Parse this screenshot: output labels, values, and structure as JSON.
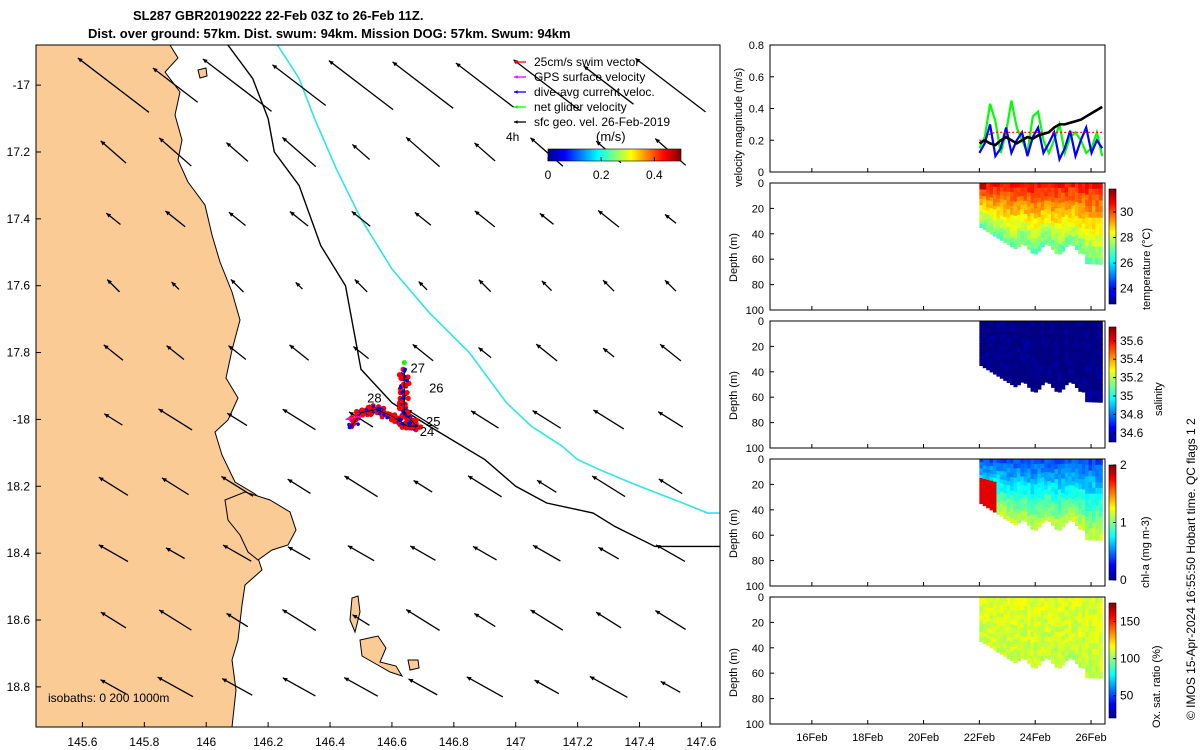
{
  "title": {
    "line1": "SL287 GBR20190222 22-Feb 03Z to 26-Feb 11Z.",
    "line2": "Dist. over ground: 57km. Dist. swum: 94km. Mission DOG: 57km. Swum: 94km"
  },
  "stamp": "© IMOS 15-Apr-2024 16:55:50 Hobart time. QC flags 1  2",
  "colors": {
    "land": "#fbcb96",
    "isobath_200": "#000000",
    "isobath_1000": "#2de6e6",
    "vector_black": "#000000"
  },
  "chart_data": [
    {
      "type": "map",
      "xlim": [
        145.45,
        147.66
      ],
      "ylim": [
        -18.92,
        -16.88
      ],
      "xticks": [
        145.6,
        145.8,
        146,
        146.2,
        146.4,
        146.6,
        146.8,
        147,
        147.2,
        147.4,
        147.6
      ],
      "yticks": [
        -17,
        -17.2,
        -17.4,
        -17.6,
        -17.8,
        -18,
        -18.2,
        -18.4,
        -18.6,
        -18.8
      ],
      "xticklabels": [
        "145.6",
        "145.8",
        "146",
        "146.2",
        "146.4",
        "146.6",
        "146.8",
        "147",
        "147.2",
        "147.4",
        "147.6"
      ],
      "yticklabels": [
        "-17",
        "17.2",
        "17.4",
        "17.6",
        "17.8",
        "-18",
        "18.2",
        "18.4",
        "18.6",
        "18.8"
      ],
      "legend": {
        "placement": "top-right",
        "entries": [
          {
            "label": "25cm/s swim vector",
            "color": "#ff0000"
          },
          {
            "label": "GPS surface velocity",
            "color": "#ff00ff"
          },
          {
            "label": "dive-avg current veloc.",
            "color": "#0000ff"
          },
          {
            "label": "net glider velocity",
            "color": "#00ff00"
          },
          {
            "label": "sfc geo. vel. 26-Feb-2019",
            "color": "#000000"
          }
        ],
        "time_label": "4h",
        "colorbar_label": "(m/s)",
        "colorbar_ticks": [
          "0",
          "0.2",
          "0.4"
        ],
        "colorbar_range": [
          0,
          0.5
        ]
      },
      "isobaths_note": "isobaths: 0   200  1000m",
      "day_labels": [
        {
          "text": "27",
          "lon": 146.66,
          "lat": -17.86
        },
        {
          "text": "26",
          "lon": 146.72,
          "lat": -17.92
        },
        {
          "text": "28",
          "lon": 146.52,
          "lat": -17.95
        },
        {
          "text": "25",
          "lon": 146.71,
          "lat": -18.02
        },
        {
          "text": "24",
          "lon": 146.69,
          "lat": -18.05
        }
      ],
      "isobath_200m": [
        [
          146.07,
          -16.88
        ],
        [
          146.15,
          -16.98
        ],
        [
          146.2,
          -17.1
        ],
        [
          146.22,
          -17.2
        ],
        [
          146.3,
          -17.3
        ],
        [
          146.37,
          -17.48
        ],
        [
          146.45,
          -17.6
        ],
        [
          146.48,
          -17.75
        ],
        [
          146.5,
          -17.85
        ],
        [
          146.6,
          -17.95
        ],
        [
          146.72,
          -18.02
        ],
        [
          146.9,
          -18.12
        ],
        [
          147.0,
          -18.2
        ],
        [
          147.1,
          -18.25
        ],
        [
          147.25,
          -18.28
        ],
        [
          147.32,
          -18.32
        ],
        [
          147.45,
          -18.38
        ],
        [
          147.66,
          -18.38
        ]
      ],
      "isobath_1000m": [
        [
          146.23,
          -16.88
        ],
        [
          146.3,
          -16.98
        ],
        [
          146.35,
          -17.1
        ],
        [
          146.42,
          -17.25
        ],
        [
          146.5,
          -17.4
        ],
        [
          146.6,
          -17.55
        ],
        [
          146.72,
          -17.68
        ],
        [
          146.85,
          -17.8
        ],
        [
          146.97,
          -17.95
        ],
        [
          147.05,
          -18.02
        ],
        [
          147.15,
          -18.08
        ],
        [
          147.2,
          -18.12
        ],
        [
          147.27,
          -18.15
        ],
        [
          147.4,
          -18.2
        ],
        [
          147.54,
          -18.25
        ],
        [
          147.62,
          -18.28
        ],
        [
          147.66,
          -18.28
        ]
      ],
      "surface_vectors": {
        "lon": [
          145.5,
          145.7,
          145.9,
          146.1,
          146.3,
          146.5,
          146.7,
          146.9,
          147.1,
          147.3,
          147.5,
          147.7
        ],
        "lat": [
          -17.0,
          -17.2,
          -17.4,
          -17.6,
          -17.8,
          -18.0,
          -18.2,
          -18.4,
          -18.6,
          -18.8
        ],
        "u": [
          -0.17,
          -0.08,
          -0.05,
          -0.03,
          -0.05,
          -0.08,
          -0.08,
          -0.07,
          -0.08,
          -0.09
        ],
        "v": [
          0.13,
          0.07,
          0.04,
          0.03,
          0.04,
          0.05,
          0.05,
          0.04,
          0.05,
          0.05
        ]
      },
      "glider_track": [
        [
          146.47,
          -18.02
        ],
        [
          146.5,
          -17.98
        ],
        [
          146.55,
          -17.97
        ],
        [
          146.6,
          -17.99
        ],
        [
          146.65,
          -18.02
        ],
        [
          146.68,
          -18.02
        ],
        [
          146.64,
          -17.98
        ],
        [
          146.64,
          -17.92
        ],
        [
          146.64,
          -17.85
        ]
      ]
    },
    {
      "type": "line",
      "ylabel": "velocity magnitude (m/s)",
      "ylim": [
        0,
        0.8
      ],
      "yticks": [
        "0",
        "0.2",
        "0.4",
        "0.6",
        "0.8"
      ],
      "xlim_days": [
        14.5,
        26.5
      ],
      "x_start_day": 22.0,
      "x_end_day": 26.4,
      "series": [
        {
          "color": "#00ff00",
          "values": [
            0.15,
            0.22,
            0.43,
            0.32,
            0.12,
            0.25,
            0.45,
            0.28,
            0.2,
            0.12,
            0.35,
            0.38,
            0.2,
            0.12,
            0.2,
            0.3,
            0.12,
            0.22,
            0.25,
            0.2,
            0.12,
            0.15,
            0.25,
            0.1
          ]
        },
        {
          "color": "#0000ff",
          "values": [
            0.12,
            0.18,
            0.3,
            0.1,
            0.15,
            0.28,
            0.12,
            0.2,
            0.25,
            0.1,
            0.22,
            0.28,
            0.12,
            0.18,
            0.25,
            0.08,
            0.15,
            0.26,
            0.1,
            0.2,
            0.28,
            0.12,
            0.2,
            0.15
          ]
        },
        {
          "color": "#ff0000",
          "values": [
            0.2,
            0.2,
            0.24,
            0.25,
            0.25,
            0.25,
            0.25,
            0.25,
            0.25,
            0.25,
            0.25,
            0.25,
            0.25,
            0.25,
            0.25,
            0.25,
            0.25,
            0.25,
            0.25,
            0.25,
            0.25,
            0.25,
            0.25,
            0.25
          ]
        },
        {
          "color": "#000000",
          "values": [
            0.18,
            0.2,
            0.18,
            0.17,
            0.2,
            0.22,
            0.2,
            0.18,
            0.2,
            0.22,
            0.21,
            0.23,
            0.24,
            0.25,
            0.28,
            0.3,
            0.3,
            0.31,
            0.32,
            0.33,
            0.35,
            0.37,
            0.39,
            0.41
          ]
        }
      ]
    },
    {
      "type": "heatmap",
      "variable": "temperature",
      "ylabel": "Depth (m)",
      "cbar_label": "temperature (°C)",
      "yticks": [
        "0",
        "20",
        "40",
        "60",
        "80",
        "100"
      ],
      "cbar_ticks": [
        "24",
        "26",
        "28",
        "30"
      ],
      "cbar_range": [
        22.8,
        31.8
      ],
      "surface_value": 30.5,
      "bottom_value": 26.8
    },
    {
      "type": "heatmap",
      "variable": "salinity",
      "ylabel": "Depth (m)",
      "cbar_label": "salinity",
      "yticks": [
        "0",
        "20",
        "40",
        "60",
        "80",
        "100"
      ],
      "cbar_ticks": [
        "34.6",
        "34.8",
        "35",
        "35.2",
        "35.4",
        "35.6"
      ],
      "cbar_range": [
        34.5,
        35.75
      ],
      "surface_value": 34.5,
      "bottom_value": 34.5
    },
    {
      "type": "heatmap",
      "variable": "chl-a",
      "ylabel": "Depth (m)",
      "cbar_label": "chl-a (mg m-3)",
      "yticks": [
        "0",
        "20",
        "40",
        "60",
        "80",
        "100"
      ],
      "cbar_ticks": [
        "0",
        "1",
        "2"
      ],
      "cbar_range": [
        0,
        2
      ],
      "surface_value": 0.4,
      "bottom_value": 1.2
    },
    {
      "type": "heatmap",
      "variable": "oxygen saturation",
      "ylabel": "Depth (m)",
      "cbar_label": "Ox. sat. ratio (%)",
      "yticks": [
        "0",
        "20",
        "40",
        "60",
        "80",
        "100"
      ],
      "cbar_ticks": [
        "50",
        "100",
        "150"
      ],
      "cbar_range": [
        20,
        175
      ],
      "surface_value": 112,
      "bottom_value": 108,
      "xticks": [
        "16Feb",
        "18Feb",
        "20Feb",
        "22Feb",
        "24Feb",
        "26Feb"
      ],
      "xtick_days": [
        16,
        18,
        20,
        22,
        24,
        26
      ]
    }
  ]
}
